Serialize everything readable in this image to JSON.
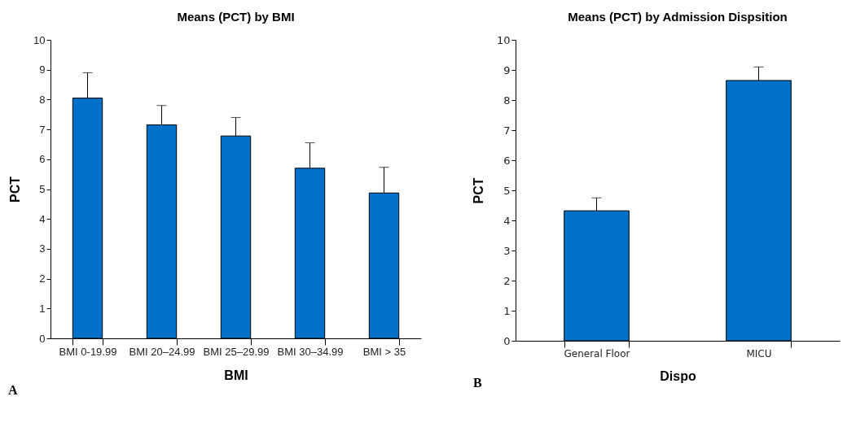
{
  "chart_data": [
    {
      "type": "bar",
      "title": "Means (PCT) by BMI",
      "xlabel": "BMI",
      "ylabel": "PCT",
      "annotations": [
        "A"
      ],
      "categories": [
        "BMI 0-19.99",
        "BMI 20–24.99",
        "BMI 25–29.99",
        "BMI 30–34.99",
        "BMI > 35"
      ],
      "values": [
        8.05,
        7.15,
        6.78,
        5.7,
        4.87
      ],
      "color": "#0070c8",
      "errors": [
        [
          8.05,
          8.9
        ],
        [
          7.15,
          7.8
        ],
        [
          6.78,
          7.4
        ],
        [
          5.7,
          6.55
        ],
        [
          4.87,
          5.73
        ]
      ],
      "ylim": [
        0,
        10
      ],
      "yticks": [
        0,
        1,
        2,
        3,
        4,
        5,
        6,
        7,
        8,
        9,
        10
      ],
      "grid": false
    },
    {
      "type": "bar",
      "title": "Means (PCT)  by Admission Dispsition",
      "xlabel": "Dispo",
      "ylabel": "PCT",
      "annotations": [
        "B"
      ],
      "categories": [
        "General Floor",
        "MICU"
      ],
      "values": [
        4.32,
        8.65
      ],
      "color": "#0070c8",
      "errors": [
        [
          4.32,
          4.75
        ],
        [
          8.65,
          9.1
        ]
      ],
      "ylim": [
        0,
        10
      ],
      "yticks": [
        0,
        1,
        2,
        3,
        4,
        5,
        6,
        7,
        8,
        9,
        10
      ],
      "grid": false
    }
  ]
}
